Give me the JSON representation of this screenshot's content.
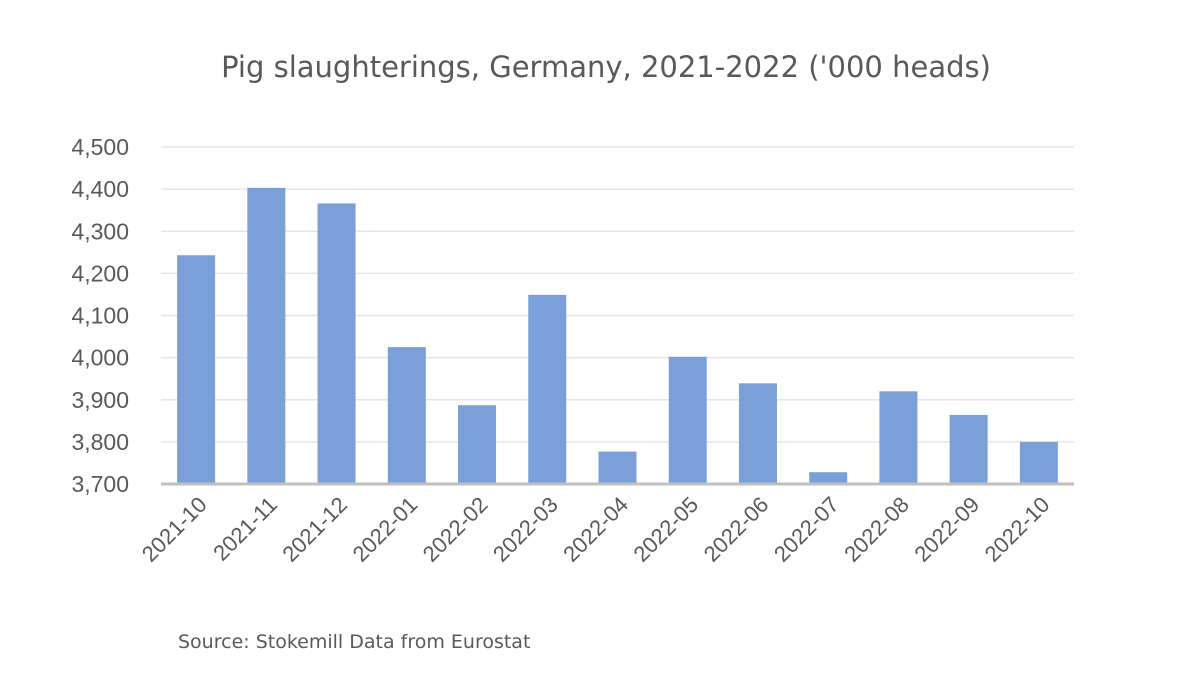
{
  "chart_data": {
    "type": "bar",
    "title": "Pig slaughterings, Germany, 2021-2022 ('000 heads)",
    "xlabel": "",
    "ylabel": "",
    "categories": [
      "2021-10",
      "2021-11",
      "2021-12",
      "2022-01",
      "2022-02",
      "2022-03",
      "2022-04",
      "2022-05",
      "2022-06",
      "2022-07",
      "2022-08",
      "2022-09",
      "2022-10"
    ],
    "values": [
      4243,
      4403,
      4366,
      4025,
      3887,
      4149,
      3777,
      4002,
      3939,
      3728,
      3920,
      3864,
      3800
    ],
    "ylim": [
      3700,
      4500
    ],
    "yticks": [
      "3,700",
      "3,800",
      "3,900",
      "4,000",
      "4,100",
      "4,200",
      "4,300",
      "4,400",
      "4,500"
    ],
    "grid": true,
    "bar_color": "#7ba0d9",
    "grid_color": "#e6e6e6",
    "axis_color": "#bfbfbf",
    "source": "Source: Stokemill Data from Eurostat"
  }
}
